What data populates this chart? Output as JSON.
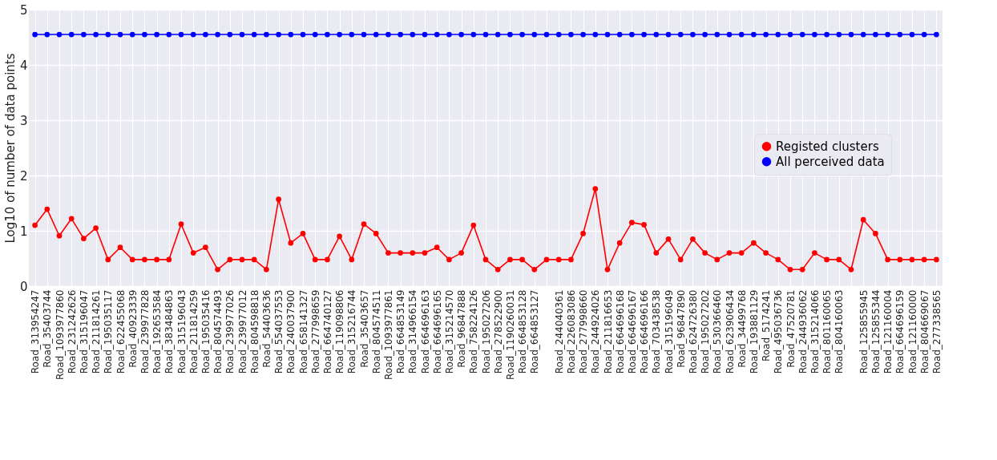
{
  "chart_data": {
    "type": "line",
    "ylabel": "Log10 of number of data points",
    "categories": [
      "Road_313954247",
      "Road_35403744",
      "Road_1093977860",
      "Road_231242626",
      "Road_315196047",
      "Road_211814261",
      "Road_195035117",
      "Road_622455068",
      "Road_40923339",
      "Road_239977828",
      "Road_192653584",
      "Road_383484863",
      "Road_315196043",
      "Road_211814259",
      "Road_195035416",
      "Road_804574493",
      "Road_239977026",
      "Road_239977012",
      "Road_804598818",
      "Road_54403636",
      "Road_554037553",
      "Road_240037900",
      "Road_658141327",
      "Road_277998659",
      "Road_664740127",
      "Road_119098806",
      "Road_315216744",
      "Road_35403657",
      "Road_804574511",
      "Road_1093977861",
      "Road_664853149",
      "Road_314966154",
      "Road_664696163",
      "Road_664696165",
      "Road_315214570",
      "Road_96847888",
      "Road_758224126",
      "Road_195027206",
      "Road_278522900",
      "Road_1190260031",
      "Road_664853128",
      "Road_664853127",
      null,
      "Road_244040361",
      "Road_226083086",
      "Road_277998660",
      "Road_244924026",
      "Road_211816653",
      "Road_664696168",
      "Road_664696167",
      "Road_664696166",
      "Road_703438538",
      "Road_315196049",
      "Road_96847890",
      "Road_624726380",
      "Road_195027202",
      "Road_530366460",
      "Road_623906434",
      "Road_34499768",
      "Road_193881129",
      "Road_5174241",
      "Road_495036736",
      "Road_47520781",
      "Road_244936062",
      "Road_315214066",
      "Road_801160065",
      "Road_804160063",
      null,
      "Road_125855945",
      "Road_125855344",
      "Road_121160004",
      "Road_664696159",
      "Road_121160000",
      "Road_804669067",
      "Road_277338565"
    ],
    "series": [
      {
        "name": "Registed clusters",
        "color": "#ff0000",
        "values": [
          1.1,
          1.39,
          0.91,
          1.22,
          0.86,
          1.05,
          0.48,
          0.7,
          0.48,
          0.48,
          0.48,
          0.48,
          1.12,
          0.6,
          0.7,
          0.3,
          0.48,
          0.48,
          0.48,
          0.3,
          1.57,
          0.78,
          0.95,
          0.48,
          0.48,
          0.9,
          0.48,
          1.12,
          0.95,
          0.6,
          0.6,
          0.6,
          0.6,
          0.7,
          0.48,
          0.6,
          1.1,
          0.48,
          0.3,
          0.48,
          0.48,
          0.3,
          0.48,
          0.48,
          0.48,
          0.95,
          1.76,
          0.3,
          0.78,
          1.15,
          1.11,
          0.6,
          0.85,
          0.48,
          0.85,
          0.6,
          0.48,
          0.6,
          0.6,
          0.78,
          0.6,
          0.48,
          0.3,
          0.3,
          0.6,
          0.48,
          0.48,
          0.3,
          1.2,
          0.95,
          0.48,
          0.48,
          0.48,
          0.48,
          0.48
        ]
      },
      {
        "name": "All perceived data",
        "color": "#0000ff",
        "values": [
          4.55,
          4.55,
          4.55,
          4.55,
          4.55,
          4.55,
          4.55,
          4.55,
          4.55,
          4.55,
          4.55,
          4.55,
          4.55,
          4.55,
          4.55,
          4.55,
          4.55,
          4.55,
          4.55,
          4.55,
          4.55,
          4.55,
          4.55,
          4.55,
          4.55,
          4.55,
          4.55,
          4.55,
          4.55,
          4.55,
          4.55,
          4.55,
          4.55,
          4.55,
          4.55,
          4.55,
          4.55,
          4.55,
          4.55,
          4.55,
          4.55,
          4.55,
          4.55,
          4.55,
          4.55,
          4.55,
          4.55,
          4.55,
          4.55,
          4.55,
          4.55,
          4.55,
          4.55,
          4.55,
          4.55,
          4.55,
          4.55,
          4.55,
          4.55,
          4.55,
          4.55,
          4.55,
          4.55,
          4.55,
          4.55,
          4.55,
          4.55,
          4.55,
          4.55,
          4.55,
          4.55,
          4.55,
          4.55,
          4.55,
          4.55
        ]
      }
    ],
    "ylim": [
      0,
      5
    ],
    "yticks": [
      0,
      1,
      2,
      3,
      4,
      5
    ],
    "grid": true,
    "legend": "right",
    "marker": "circle",
    "line_style": "solid"
  }
}
